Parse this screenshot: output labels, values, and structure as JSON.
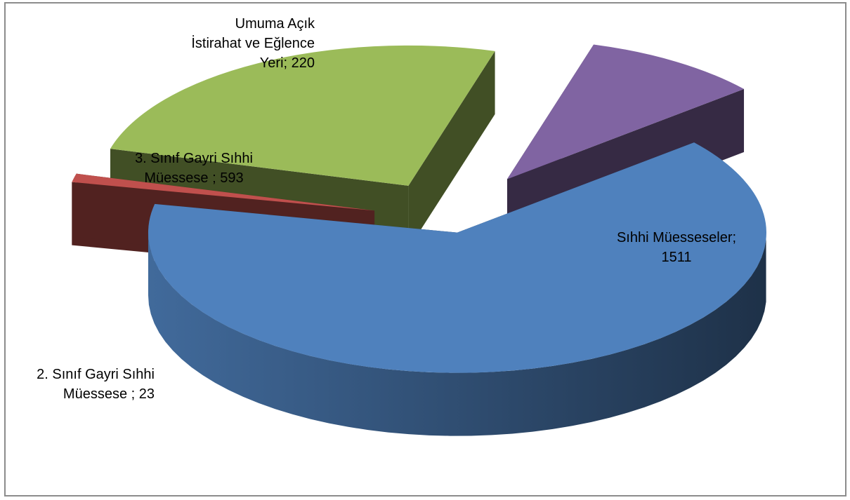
{
  "chart_data": {
    "type": "pie",
    "title": "",
    "slices": [
      {
        "name": "Sıhhi Müesseseler",
        "value": 1511,
        "color": "#4f81bd",
        "label_lines": [
          "Sıhhi Müesseseler;",
          "1511"
        ]
      },
      {
        "name": "2. Sınıf Gayri Sıhhi Müessese",
        "value": 23,
        "color": "#c0504d",
        "label_lines": [
          "2. Sınıf Gayri Sıhhi",
          "Müessese ; 23"
        ]
      },
      {
        "name": "3. Sınıf Gayri Sıhhi Müessese",
        "value": 593,
        "color": "#9bbb59",
        "label_lines": [
          "3. Sınıf Gayri Sıhhi",
          "Müessese ; 593"
        ]
      },
      {
        "name": "Umuma Açık İstirahat ve Eğlence Yeri",
        "value": 220,
        "color": "#8064a2",
        "label_lines": [
          "Umuma Açık",
          "İstirahat ve Eğlence",
          "Yeri; 220"
        ]
      }
    ],
    "exploded": true,
    "style": "3d",
    "legend": "none"
  }
}
